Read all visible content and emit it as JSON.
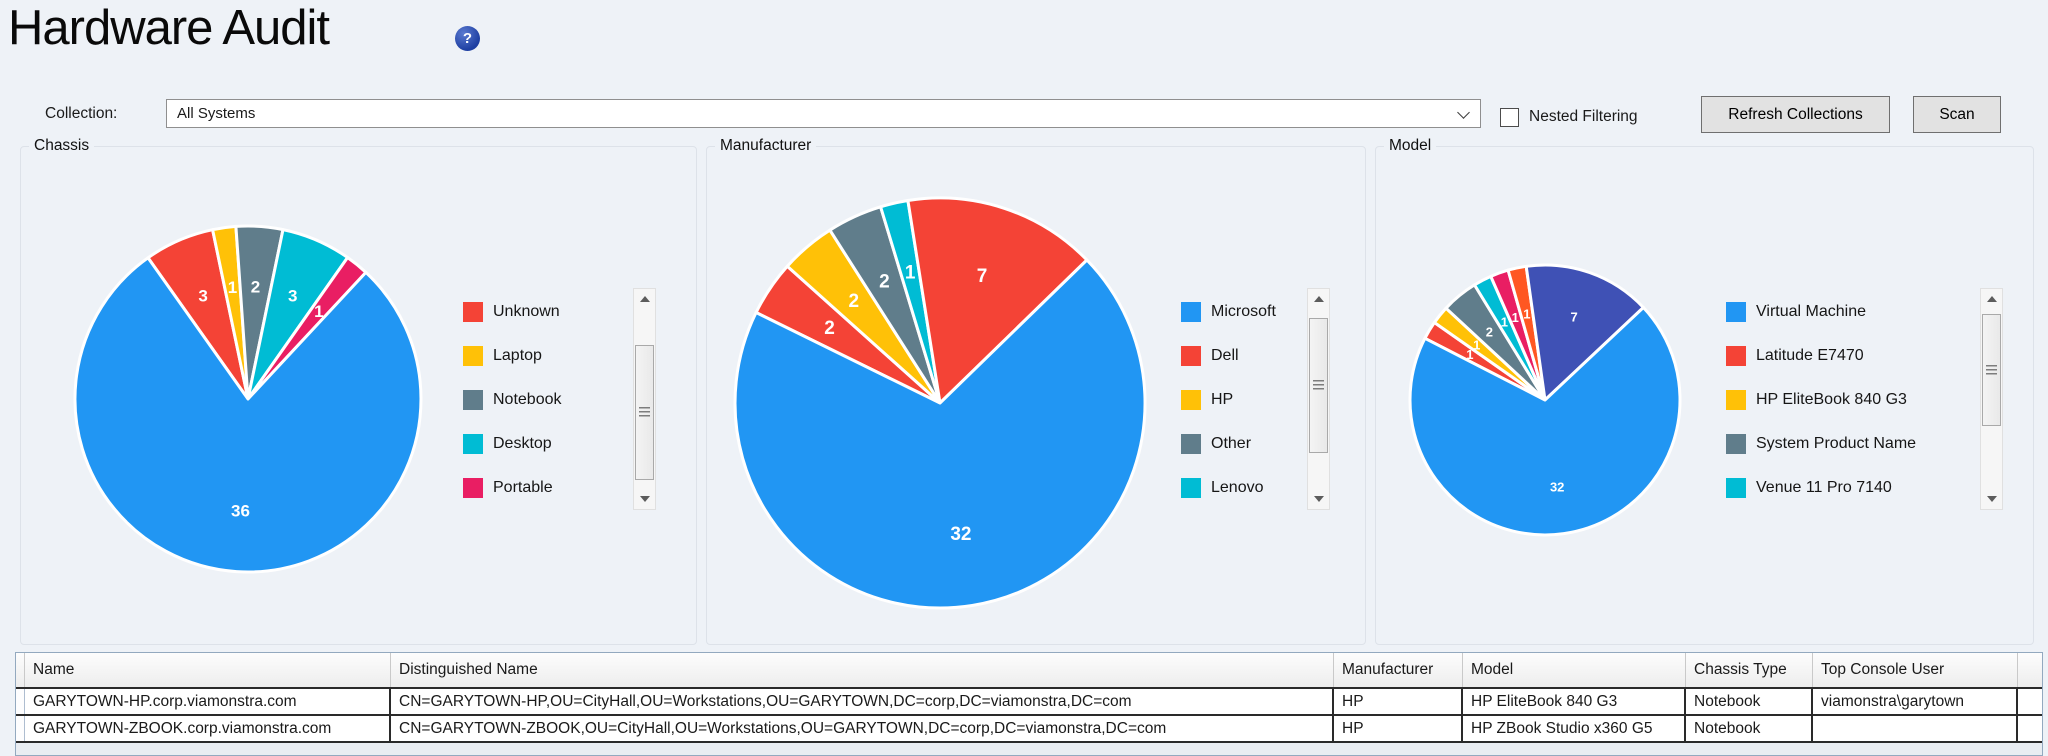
{
  "page": {
    "title": "Hardware Audit",
    "help_icon": "?",
    "background_color": "#eef2f7",
    "accent_blue": "#2196f3"
  },
  "toolbar": {
    "collection_label": "Collection:",
    "collection_value": "All Systems",
    "nested_filtering_label": "Nested Filtering",
    "nested_filtering_checked": false,
    "refresh_button": "Refresh Collections",
    "scan_button": "Scan"
  },
  "chart_data": [
    {
      "type": "pie",
      "title": "Chassis",
      "total": 46,
      "start_angle_deg": 324.7,
      "slices": [
        {
          "label": "Unknown",
          "value": 3,
          "color": "#F44336"
        },
        {
          "label": "Laptop",
          "value": 1,
          "color": "#FFC107"
        },
        {
          "label": "Notebook",
          "value": 2,
          "color": "#607D8B"
        },
        {
          "label": "Desktop",
          "value": 3,
          "color": "#00BCD4"
        },
        {
          "label": "Portable",
          "value": 1,
          "color": "#E91E63"
        },
        {
          "label": null,
          "value": 36,
          "color": "#2196F3"
        }
      ],
      "legend": [
        {
          "label": "Unknown",
          "color": "#F44336"
        },
        {
          "label": "Laptop",
          "color": "#FFC107"
        },
        {
          "label": "Notebook",
          "color": "#607D8B"
        },
        {
          "label": "Desktop",
          "color": "#00BCD4"
        },
        {
          "label": "Portable",
          "color": "#E91E63"
        }
      ],
      "legend_position": "right",
      "legend_scrollbar": true
    },
    {
      "type": "pie",
      "title": "Manufacturer",
      "total": 46,
      "start_angle_deg": 296.2,
      "slices": [
        {
          "label": "Dell",
          "value": 2,
          "color": "#F44336"
        },
        {
          "label": "HP",
          "value": 2,
          "color": "#FFC107"
        },
        {
          "label": "Other",
          "value": 2,
          "color": "#607D8B"
        },
        {
          "label": "Lenovo",
          "value": 1,
          "color": "#00BCD4"
        },
        {
          "label": null,
          "value": 7,
          "color": "#F44336"
        },
        {
          "label": "Microsoft",
          "value": 32,
          "color": "#2196F3"
        }
      ],
      "legend": [
        {
          "label": "Microsoft",
          "color": "#2196F3"
        },
        {
          "label": "Dell",
          "color": "#F44336"
        },
        {
          "label": "HP",
          "color": "#FFC107"
        },
        {
          "label": "Other",
          "color": "#607D8B"
        },
        {
          "label": "Lenovo",
          "color": "#00BCD4"
        }
      ],
      "legend_position": "right",
      "legend_scrollbar": true
    },
    {
      "type": "pie",
      "title": "Model",
      "total": 46,
      "start_angle_deg": 297.2,
      "slices": [
        {
          "label": "Latitude E7470",
          "value": 1,
          "color": "#F44336"
        },
        {
          "label": "HP EliteBook 840 G3",
          "value": 1,
          "color": "#FFC107"
        },
        {
          "label": "System Product Name",
          "value": 2,
          "color": "#607D8B"
        },
        {
          "label": "Venue 11 Pro 7140",
          "value": 1,
          "color": "#00BCD4"
        },
        {
          "label": null,
          "value": 1,
          "color": "#E91E63"
        },
        {
          "label": null,
          "value": 1,
          "color": "#FF5722"
        },
        {
          "label": null,
          "value": 7,
          "color": "#3F51B5"
        },
        {
          "label": "Virtual Machine",
          "value": 32,
          "color": "#2196F3"
        }
      ],
      "legend": [
        {
          "label": "Virtual Machine",
          "color": "#2196F3"
        },
        {
          "label": "Latitude E7470",
          "color": "#F44336"
        },
        {
          "label": "HP EliteBook 840 G3",
          "color": "#FFC107"
        },
        {
          "label": "System Product Name",
          "color": "#607D8B"
        },
        {
          "label": "Venue 11 Pro 7140",
          "color": "#00BCD4"
        }
      ],
      "legend_position": "right",
      "legend_scrollbar": true
    }
  ],
  "table": {
    "columns": [
      "Name",
      "Distinguished Name",
      "Manufacturer",
      "Model",
      "Chassis Type",
      "Top Console User"
    ],
    "rows": [
      [
        "GARYTOWN-HP.corp.viamonstra.com",
        "CN=GARYTOWN-HP,OU=CityHall,OU=Workstations,OU=GARYTOWN,DC=corp,DC=viamonstra,DC=com",
        "HP",
        "HP EliteBook 840 G3",
        "Notebook",
        "viamonstra\\garytown"
      ],
      [
        "GARYTOWN-ZBOOK.corp.viamonstra.com",
        "CN=GARYTOWN-ZBOOK,OU=CityHall,OU=Workstations,OU=GARYTOWN,DC=corp,DC=viamonstra,DC=com",
        "HP",
        "HP ZBook Studio x360 G5",
        "Notebook",
        ""
      ]
    ]
  }
}
